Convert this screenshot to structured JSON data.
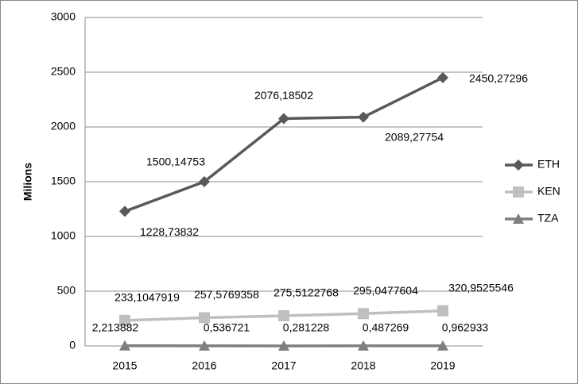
{
  "chart_data": {
    "type": "line",
    "y_label": "Milions",
    "categories": [
      "2015",
      "2016",
      "2017",
      "2018",
      "2019"
    ],
    "ylim": [
      0,
      3000
    ],
    "yticks": [
      0,
      500,
      1000,
      1500,
      2000,
      2500,
      3000
    ],
    "grid": true,
    "legend": "right",
    "series": [
      {
        "name": "ETH",
        "color": "#595959",
        "marker": "diamond",
        "values": [
          1228.73832,
          1500.14753,
          2076.18502,
          2089.27754,
          2450.27296
        ],
        "value_labels": [
          "1228,73832",
          "1500,14753",
          "2076,18502",
          "2089,27754",
          "2450,27296"
        ]
      },
      {
        "name": "KEN",
        "color": "#bfbfbf",
        "marker": "square",
        "values": [
          233.1047919,
          257.5769358,
          275.5122768,
          295.0477604,
          320.9525546
        ],
        "value_labels": [
          "233,1047919",
          "257,5769358",
          "275,5122768",
          "295,0477604",
          "320,9525546"
        ]
      },
      {
        "name": "TZA",
        "color": "#7f7f7f",
        "marker": "triangle",
        "values": [
          2.213882,
          0.536721,
          0.281228,
          0.487269,
          0.962933
        ],
        "value_labels": [
          "2,213882",
          "0,536721",
          "0,281228",
          "0,487269",
          "0,962933"
        ]
      }
    ]
  }
}
